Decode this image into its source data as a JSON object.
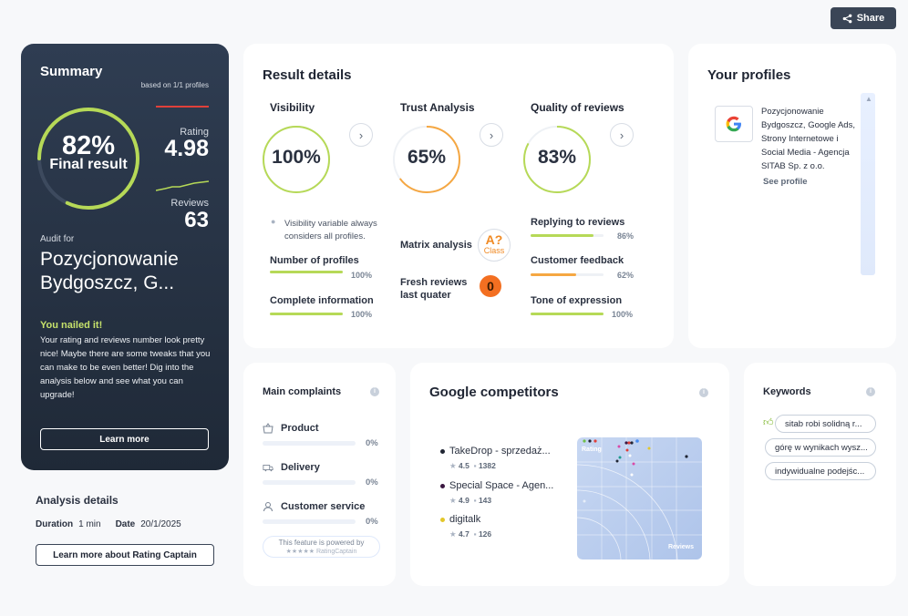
{
  "share": {
    "label": "Share"
  },
  "summary": {
    "title": "Summary",
    "based_on": "based on 1/1 profiles",
    "final_pct": "82%",
    "final_label": "Final result",
    "final_value": 0.82,
    "rating_label": "Rating",
    "rating_value": "4.98",
    "reviews_label": "Reviews",
    "reviews_value": "63",
    "audit_for": "Audit for",
    "company": "Pozycjonowanie Bydgoszcz, G...",
    "nailed": "You nailed it!",
    "message": "Your rating and reviews number look pretty nice! Maybe there are some tweaks that you can make to be even better! Dig into the analysis below and see what you can upgrade!",
    "learn_more": "Learn more",
    "accent": "#b6d957"
  },
  "analysis": {
    "title": "Analysis details",
    "duration_label": "Duration",
    "duration_value": "1 min",
    "date_label": "Date",
    "date_value": "20/1/2025",
    "button": "Learn more about Rating Captain"
  },
  "result": {
    "title": "Result details",
    "visibility": {
      "title": "Visibility",
      "value": "100%",
      "fraction": 1.0,
      "note": "Visibility variable always considers all profiles.",
      "metrics": [
        {
          "label": "Number of profiles",
          "pct": "100%",
          "fraction": 1.0
        },
        {
          "label": "Complete information",
          "pct": "100%",
          "fraction": 1.0
        }
      ]
    },
    "trust": {
      "title": "Trust Analysis",
      "value": "65%",
      "fraction": 0.65,
      "matrix_label": "Matrix analysis",
      "matrix_grade": "A?",
      "matrix_class": "Class",
      "fresh_label": "Fresh reviews last quater",
      "fresh_value": "0"
    },
    "quality": {
      "title": "Quality of reviews",
      "value": "83%",
      "fraction": 0.83,
      "metrics": [
        {
          "label": "Replying to reviews",
          "pct": "86%",
          "fraction": 0.86,
          "color": "#b6d957"
        },
        {
          "label": "Customer feedback",
          "pct": "62%",
          "fraction": 0.62,
          "color": "#f5a742"
        },
        {
          "label": "Tone of expression",
          "pct": "100%",
          "fraction": 1.0,
          "color": "#b6d957"
        }
      ]
    }
  },
  "profiles": {
    "title": "Your profiles",
    "items": [
      {
        "name": "Pozycjonowanie Bydgoszcz, Google Ads, Strony Internetowe i Social Media - Agencja SITAB Sp. z o.o.",
        "link": "See profile",
        "icon": "google-icon"
      }
    ]
  },
  "complaints": {
    "title": "Main complaints",
    "items": [
      {
        "label": "Product",
        "pct": "0%",
        "icon": "basket-icon"
      },
      {
        "label": "Delivery",
        "pct": "0%",
        "icon": "truck-icon"
      },
      {
        "label": "Customer service",
        "pct": "0%",
        "icon": "person-icon"
      }
    ],
    "powered_line1": "This feature is powered by",
    "powered_line2": "★★★★★ RatingCaptain"
  },
  "competitors": {
    "title": "Google competitors",
    "items": [
      {
        "name": "TakeDrop - sprzedaż...",
        "rating": "4.5",
        "reviews": "1382",
        "color": "#1f2533"
      },
      {
        "name": "Special Space - Agen...",
        "rating": "4.9",
        "reviews": "143",
        "color": "#3a1740"
      },
      {
        "name": "digitalk",
        "rating": "4.7",
        "reviews": "126",
        "color": "#e3c72a"
      }
    ],
    "plot_y_label": "Rating",
    "plot_x_label": "Reviews"
  },
  "keywords": {
    "title": "Keywords",
    "items": [
      "sitab robi solidną r...",
      "górę w wynikach wysz...",
      "indywidualne podejśc..."
    ]
  }
}
